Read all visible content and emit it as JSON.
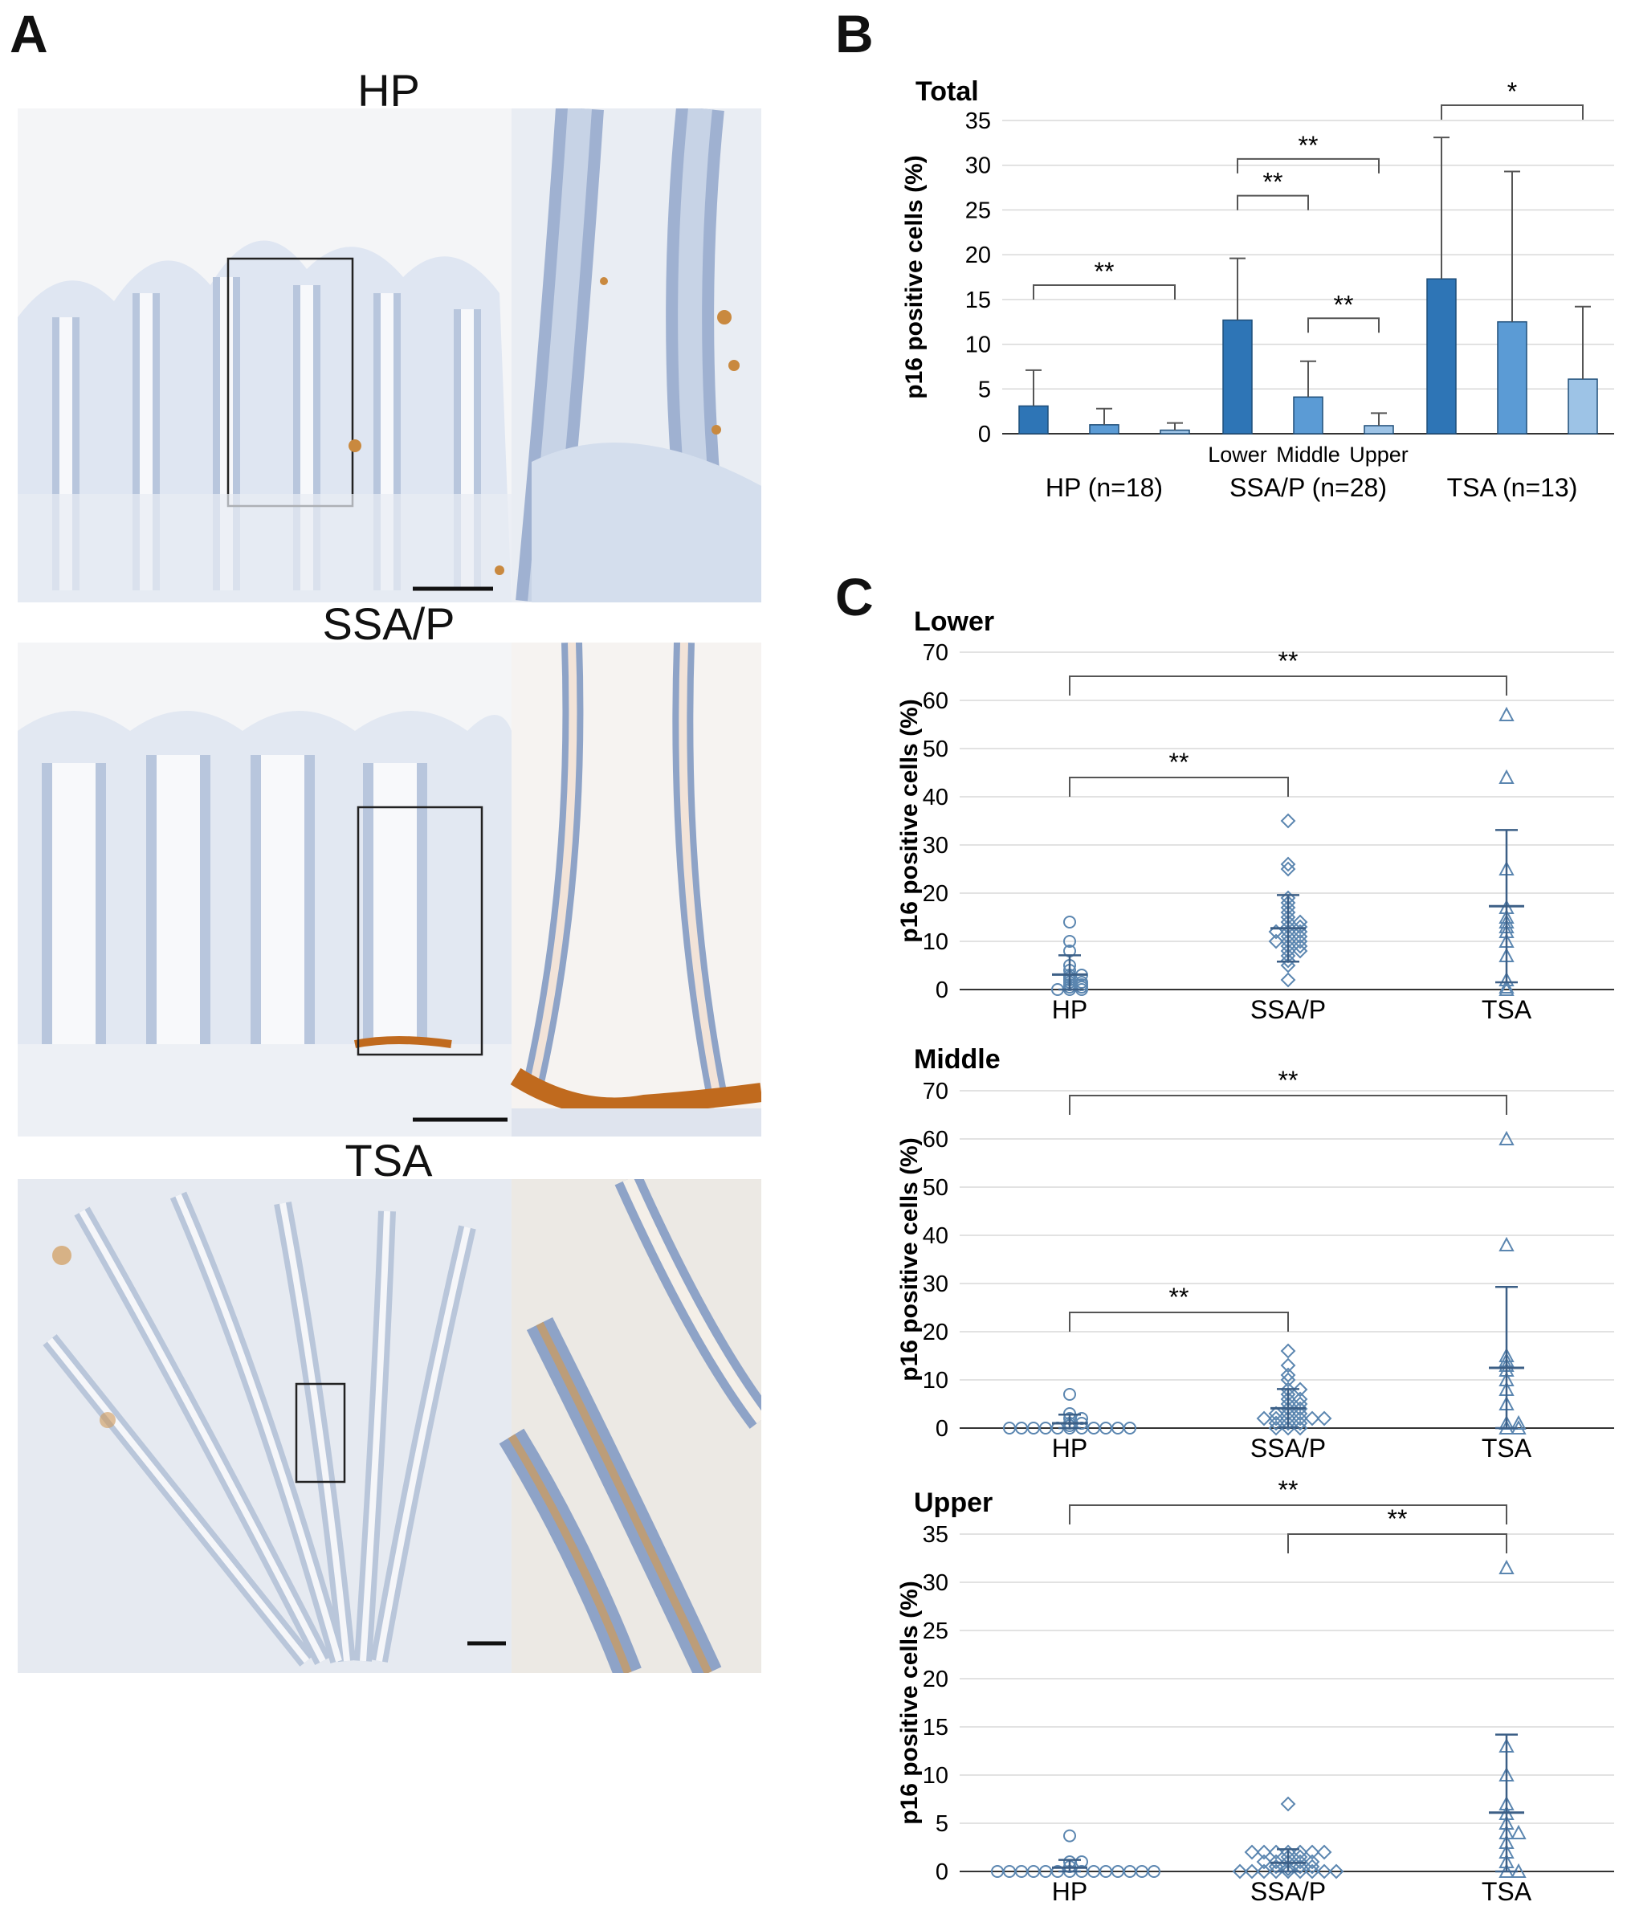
{
  "panels": {
    "A": {
      "letter": "A",
      "images": [
        {
          "title": "HP",
          "tint": "#dfe6f2",
          "stain": "#c9893f"
        },
        {
          "title": "SSA/P",
          "tint": "#e2e8f2",
          "stain": "#c06a1e"
        },
        {
          "title": "TSA",
          "tint": "#e6eaf1",
          "stain": "#d09a58"
        }
      ]
    },
    "B": {
      "letter": "B"
    },
    "C": {
      "letter": "C"
    }
  },
  "colors": {
    "lower": "#2e75b6",
    "middle": "#5b9bd5",
    "upper": "#9dc3e6",
    "marker": "#5b86b0",
    "grid": "#d9d9d9",
    "axis": "#333333"
  },
  "chart_data": [
    {
      "id": "B",
      "type": "bar",
      "title": "Total",
      "ylabel": "p16 positive cells (%)",
      "ylim": [
        0,
        35
      ],
      "yticks": [
        0,
        5,
        10,
        15,
        20,
        25,
        30,
        35
      ],
      "grid": true,
      "groups": [
        "HP (n=18)",
        "SSA/P (n=28)",
        "TSA (n=13)"
      ],
      "bar_labels": [
        "Lower",
        "Middle",
        "Upper"
      ],
      "series": [
        {
          "name": "Lower",
          "values": [
            3.1,
            12.7,
            17.3
          ],
          "error": [
            4.0,
            6.9,
            15.8
          ]
        },
        {
          "name": "Middle",
          "values": [
            1.0,
            4.1,
            12.5
          ],
          "error": [
            1.8,
            4.0,
            16.8
          ]
        },
        {
          "name": "Upper",
          "values": [
            0.4,
            0.9,
            6.1
          ],
          "error": [
            0.8,
            1.4,
            8.1
          ]
        }
      ],
      "significance": [
        {
          "from": [
            0,
            0
          ],
          "to": [
            0,
            2
          ],
          "label": "**"
        },
        {
          "from": [
            1,
            0
          ],
          "to": [
            1,
            1
          ],
          "label": "**"
        },
        {
          "from": [
            1,
            0
          ],
          "to": [
            1,
            2
          ],
          "label": "**"
        },
        {
          "from": [
            1,
            1
          ],
          "to": [
            1,
            2
          ],
          "label": "**"
        },
        {
          "from": [
            2,
            0
          ],
          "to": [
            2,
            2
          ],
          "label": "*"
        }
      ]
    },
    {
      "id": "C-lower",
      "type": "scatter",
      "title": "Lower",
      "ylabel": "p16 positive cells (%)",
      "ylim": [
        0,
        70
      ],
      "yticks": [
        0,
        10,
        20,
        30,
        40,
        50,
        60,
        70
      ],
      "grid": true,
      "categories": [
        "HP",
        "SSA/P",
        "TSA"
      ],
      "markers": [
        "circle",
        "diamond",
        "triangle"
      ],
      "points": [
        [
          0,
          0,
          0,
          0.5,
          0.5,
          1,
          1,
          1.5,
          1.5,
          2,
          2.5,
          3,
          3,
          4,
          5,
          8,
          10,
          14
        ],
        [
          2,
          5,
          6,
          7,
          8,
          8,
          9,
          9,
          10,
          10,
          10,
          11,
          11,
          12,
          12,
          12,
          13,
          13,
          14,
          14,
          15,
          16,
          17,
          18,
          19,
          25,
          26,
          35
        ],
        [
          0,
          2,
          7,
          10,
          12,
          13,
          14,
          15,
          17,
          25,
          44,
          57,
          0.5
        ]
      ],
      "means": [
        3.1,
        12.7,
        17.3
      ],
      "sd_upper": [
        7.1,
        19.6,
        33.1
      ],
      "sd_lower": [
        0.0,
        5.8,
        1.5
      ],
      "significance": [
        {
          "from": 0,
          "to": 1,
          "label": "**",
          "y": 44
        },
        {
          "from": 0,
          "to": 2,
          "label": "**",
          "y": 65
        }
      ]
    },
    {
      "id": "C-middle",
      "type": "scatter",
      "title": "Middle",
      "ylabel": "p16 positive cells (%)",
      "ylim": [
        0,
        70
      ],
      "yticks": [
        0,
        10,
        20,
        30,
        40,
        50,
        60,
        70
      ],
      "grid": true,
      "categories": [
        "HP",
        "SSA/P",
        "TSA"
      ],
      "markers": [
        "circle",
        "diamond",
        "triangle"
      ],
      "points": [
        [
          0,
          0,
          0,
          0,
          0,
          0,
          0,
          0,
          0,
          0,
          0,
          0.5,
          1,
          1,
          2,
          2,
          3,
          7
        ],
        [
          0,
          0,
          0,
          1,
          1,
          1,
          2,
          2,
          2,
          2,
          2,
          2,
          3,
          3,
          3,
          4,
          4,
          5,
          5,
          6,
          6,
          7,
          8,
          8,
          10,
          11,
          13,
          16
        ],
        [
          0,
          0,
          1,
          1,
          5,
          8,
          10,
          12,
          13,
          14,
          15,
          38,
          60
        ]
      ],
      "means": [
        1.0,
        4.1,
        12.5
      ],
      "sd_upper": [
        2.8,
        8.1,
        29.3
      ],
      "sd_lower": [
        0.0,
        0.1,
        0.0
      ],
      "significance": [
        {
          "from": 0,
          "to": 1,
          "label": "**",
          "y": 24
        },
        {
          "from": 0,
          "to": 2,
          "label": "**",
          "y": 69
        }
      ]
    },
    {
      "id": "C-upper",
      "type": "scatter",
      "title": "Upper",
      "ylabel": "p16 positive cells (%)",
      "ylim": [
        0,
        35
      ],
      "yticks": [
        0,
        5,
        10,
        15,
        20,
        25,
        30,
        35
      ],
      "grid": true,
      "categories": [
        "HP",
        "SSA/P",
        "TSA"
      ],
      "markers": [
        "circle",
        "diamond",
        "triangle"
      ],
      "points": [
        [
          0,
          0,
          0,
          0,
          0,
          0,
          0,
          0,
          0,
          0,
          0,
          0,
          0,
          0,
          0.5,
          1,
          1,
          3.7
        ],
        [
          0,
          0,
          0,
          0,
          0,
          0,
          0,
          0,
          0,
          0.3,
          0.5,
          0.5,
          0.5,
          1,
          1,
          1,
          1,
          1,
          1.5,
          1.5,
          2,
          2,
          2,
          2,
          2,
          2,
          2,
          7
        ],
        [
          0,
          0,
          1,
          2,
          3,
          4,
          4,
          5,
          6,
          7,
          10,
          13,
          31.5
        ]
      ],
      "means": [
        0.4,
        0.9,
        6.1
      ],
      "sd_upper": [
        1.2,
        2.3,
        14.2
      ],
      "sd_lower": [
        0.0,
        0.0,
        0.0
      ],
      "significance": [
        {
          "from": 0,
          "to": 2,
          "label": "**",
          "y": 38
        },
        {
          "from": 1,
          "to": 2,
          "label": "**",
          "y": 35
        }
      ]
    }
  ]
}
